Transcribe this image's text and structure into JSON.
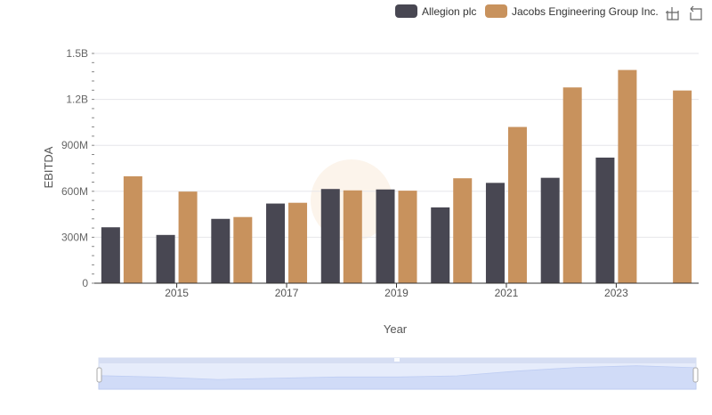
{
  "chart_data": {
    "type": "bar",
    "xlabel": "Year",
    "ylabel": "EBITDA",
    "ylim": [
      0,
      1500000000
    ],
    "y_ticks": [
      0,
      300000000,
      600000000,
      900000000,
      1200000000,
      1500000000
    ],
    "y_tick_labels": [
      "0",
      "300M",
      "600M",
      "900M",
      "1.2B",
      "1.5B"
    ],
    "categories": [
      "2014",
      "2015",
      "2016",
      "2017",
      "2018",
      "2019",
      "2020",
      "2021",
      "2022",
      "2023",
      "2024"
    ],
    "x_tick_labels": [
      "2015",
      "2017",
      "2019",
      "2021",
      "2023"
    ],
    "series": [
      {
        "name": "Allegion plc",
        "color": "#484752",
        "values": [
          365000000,
          315000000,
          420000000,
          520000000,
          615000000,
          612000000,
          495000000,
          655000000,
          688000000,
          820000000,
          null
        ]
      },
      {
        "name": "Jacobs Engineering Group Inc.",
        "color": "#c8925d",
        "values": [
          698000000,
          598000000,
          432000000,
          525000000,
          606000000,
          604000000,
          685000000,
          1020000000,
          1278000000,
          1392000000,
          1258000000
        ]
      }
    ],
    "legend_position": "top-right",
    "grid": true,
    "toolbox_icons": [
      "zoom-icon",
      "restore-icon"
    ],
    "datazoom": {
      "start": 0,
      "end": 1
    }
  }
}
